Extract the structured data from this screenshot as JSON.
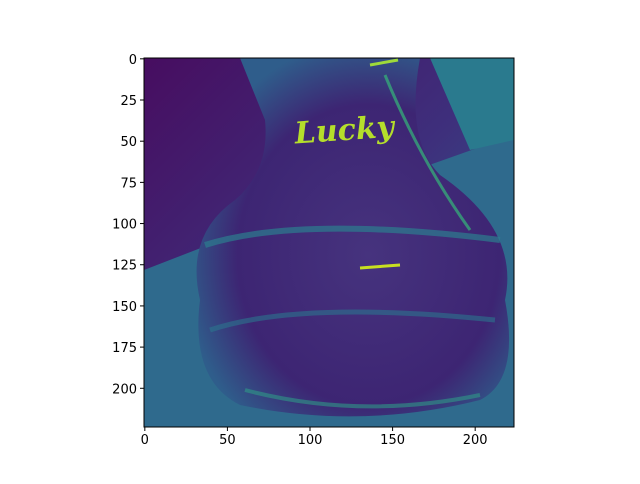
{
  "chart_data": {
    "type": "image",
    "image_text": "Lucky",
    "xlim": [
      -0.5,
      223.5
    ],
    "ylim": [
      223.5,
      -0.5
    ],
    "xticks": [
      0,
      50,
      100,
      150,
      200
    ],
    "yticks": [
      0,
      25,
      50,
      75,
      100,
      125,
      150,
      175,
      200
    ]
  }
}
